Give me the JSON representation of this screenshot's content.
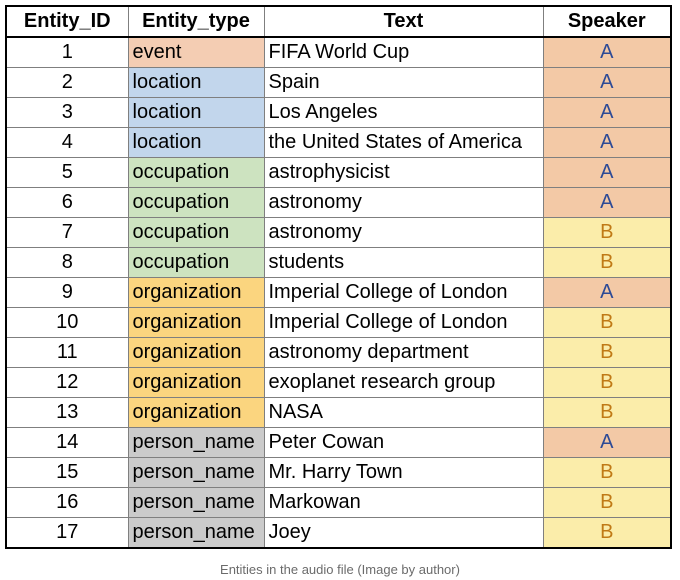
{
  "table": {
    "headers": [
      "Entity_ID",
      "Entity_type",
      "Text",
      "Speaker"
    ],
    "type_colors": {
      "event": "#f4cdb3",
      "location": "#c2d6ec",
      "occupation": "#cde3c0",
      "organization": "#fbd57f",
      "person_name": "#cbcbcb"
    },
    "speaker_colors": {
      "A": {
        "bg": "#f3c9a6",
        "fg": "#2d4a96"
      },
      "B": {
        "bg": "#fbedaa",
        "fg": "#c07a16"
      }
    },
    "rows": [
      {
        "id": "1",
        "type": "event",
        "text": "FIFA World Cup",
        "speaker": "A"
      },
      {
        "id": "2",
        "type": "location",
        "text": "Spain",
        "speaker": "A"
      },
      {
        "id": "3",
        "type": "location",
        "text": "Los Angeles",
        "speaker": "A"
      },
      {
        "id": "4",
        "type": "location",
        "text": "the United States of America",
        "speaker": "A"
      },
      {
        "id": "5",
        "type": "occupation",
        "text": "astrophysicist",
        "speaker": "A"
      },
      {
        "id": "6",
        "type": "occupation",
        "text": "astronomy",
        "speaker": "A"
      },
      {
        "id": "7",
        "type": "occupation",
        "text": "astronomy",
        "speaker": "B"
      },
      {
        "id": "8",
        "type": "occupation",
        "text": "students",
        "speaker": "B"
      },
      {
        "id": "9",
        "type": "organization",
        "text": "Imperial College of London",
        "speaker": "A"
      },
      {
        "id": "10",
        "type": "organization",
        "text": "Imperial College of London",
        "speaker": "B"
      },
      {
        "id": "11",
        "type": "organization",
        "text": "astronomy department",
        "speaker": "B"
      },
      {
        "id": "12",
        "type": "organization",
        "text": "exoplanet research group",
        "speaker": "B"
      },
      {
        "id": "13",
        "type": "organization",
        "text": "NASA",
        "speaker": "B"
      },
      {
        "id": "14",
        "type": "person_name",
        "text": "Peter Cowan",
        "speaker": "A"
      },
      {
        "id": "15",
        "type": "person_name",
        "text": "Mr. Harry Town",
        "speaker": "B"
      },
      {
        "id": "16",
        "type": "person_name",
        "text": "Markowan",
        "speaker": "B"
      },
      {
        "id": "17",
        "type": "person_name",
        "text": "Joey",
        "speaker": "B"
      }
    ]
  },
  "caption": "Entities in the audio file (Image by author)"
}
